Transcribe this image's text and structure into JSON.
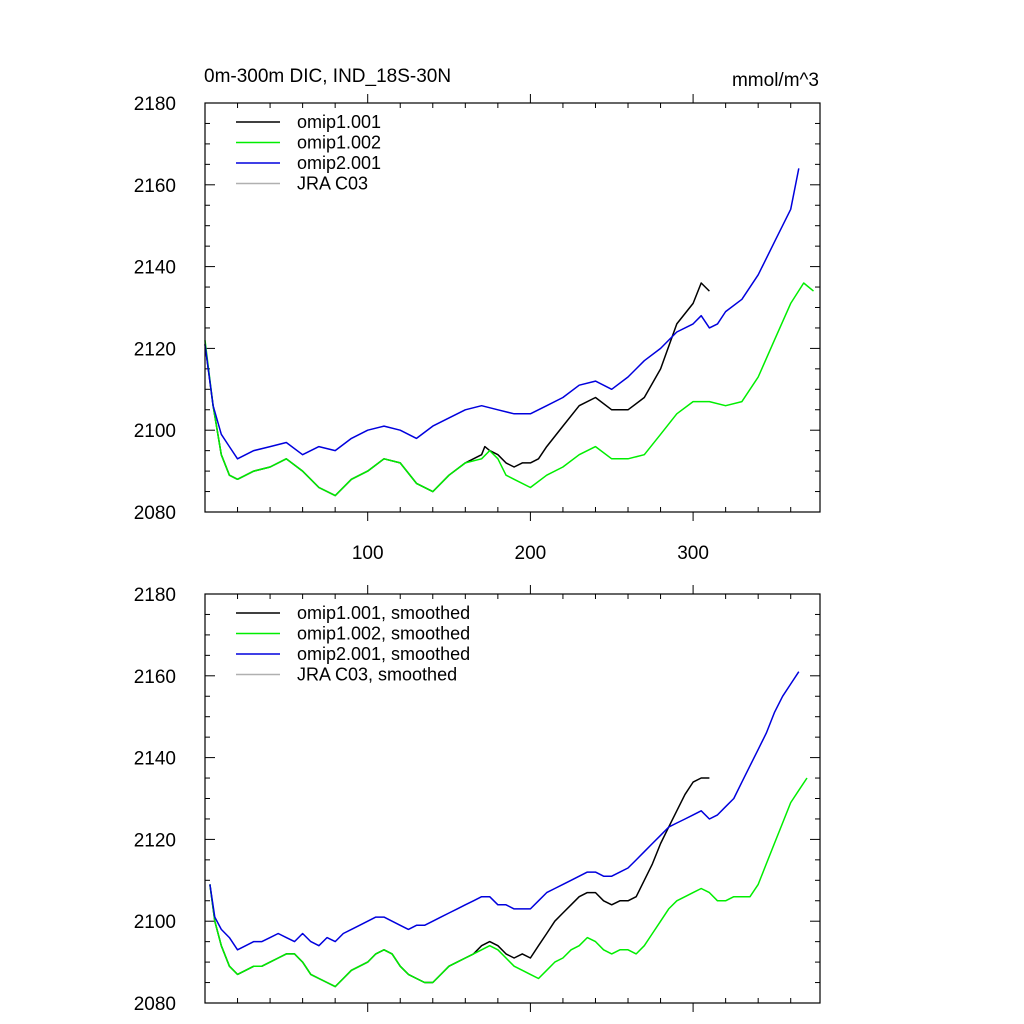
{
  "chart_data": [
    {
      "type": "line",
      "title": "0m-300m DIC, IND_18S-30N",
      "units": "mmol/m^3",
      "xlim": [
        0,
        378
      ],
      "ylim": [
        2080,
        2180
      ],
      "y_ticks": [
        2080,
        2100,
        2120,
        2140,
        2160,
        2180
      ],
      "x_ticks": [
        100,
        200,
        300
      ],
      "series": [
        {
          "name": "omip1.001",
          "color": "#000000",
          "x": [
            0,
            5,
            10,
            15,
            20,
            30,
            40,
            50,
            60,
            70,
            80,
            90,
            100,
            110,
            120,
            130,
            140,
            150,
            160,
            170,
            172,
            175,
            180,
            185,
            190,
            195,
            200,
            205,
            210,
            220,
            230,
            240,
            250,
            260,
            270,
            280,
            290,
            300,
            305,
            310
          ],
          "y": [
            2121,
            2106,
            2094,
            2089,
            2088,
            2090,
            2091,
            2093,
            2090,
            2086,
            2084,
            2088,
            2090,
            2093,
            2092,
            2087,
            2085,
            2089,
            2092,
            2094,
            2096,
            2095,
            2094,
            2092,
            2091,
            2092,
            2092,
            2093,
            2096,
            2101,
            2106,
            2108,
            2105,
            2105,
            2108,
            2115,
            2126,
            2131,
            2136,
            2134
          ]
        },
        {
          "name": "omip1.002",
          "color": "#00ee00",
          "x": [
            0,
            5,
            10,
            15,
            20,
            30,
            40,
            50,
            60,
            70,
            80,
            90,
            100,
            110,
            120,
            130,
            140,
            150,
            160,
            170,
            175,
            180,
            185,
            190,
            200,
            210,
            220,
            230,
            240,
            250,
            260,
            270,
            280,
            290,
            300,
            310,
            320,
            330,
            340,
            350,
            360,
            368,
            374
          ],
          "y": [
            2122,
            2106,
            2094,
            2089,
            2088,
            2090,
            2091,
            2093,
            2090,
            2086,
            2084,
            2088,
            2090,
            2093,
            2092,
            2087,
            2085,
            2089,
            2092,
            2093,
            2095,
            2093,
            2089,
            2088,
            2086,
            2089,
            2091,
            2094,
            2096,
            2093,
            2093,
            2094,
            2099,
            2104,
            2107,
            2107,
            2106,
            2107,
            2113,
            2122,
            2131,
            2136,
            2134
          ]
        },
        {
          "name": "omip2.001",
          "color": "#0000dd",
          "x": [
            0,
            5,
            10,
            15,
            20,
            30,
            40,
            50,
            60,
            70,
            80,
            90,
            100,
            110,
            120,
            130,
            140,
            150,
            160,
            170,
            180,
            190,
            200,
            210,
            220,
            230,
            240,
            250,
            260,
            270,
            280,
            290,
            300,
            305,
            310,
            315,
            320,
            330,
            340,
            350,
            360,
            365
          ],
          "y": [
            2121,
            2106,
            2099,
            2096,
            2093,
            2095,
            2096,
            2097,
            2094,
            2096,
            2095,
            2098,
            2100,
            2101,
            2100,
            2098,
            2101,
            2103,
            2105,
            2106,
            2105,
            2104,
            2104,
            2106,
            2108,
            2111,
            2112,
            2110,
            2113,
            2117,
            2120,
            2124,
            2126,
            2128,
            2125,
            2126,
            2129,
            2132,
            2138,
            2146,
            2154,
            2164
          ]
        },
        {
          "name": "JRA C03",
          "color": "#b0b0b0",
          "x": [],
          "y": []
        }
      ]
    },
    {
      "type": "line",
      "title": "",
      "xlim": [
        0,
        378
      ],
      "ylim": [
        2080,
        2180
      ],
      "y_ticks": [
        2080,
        2100,
        2120,
        2140,
        2160,
        2180
      ],
      "x_ticks": [],
      "series": [
        {
          "name": "omip1.001, smoothed",
          "color": "#000000",
          "x": [
            3,
            6,
            10,
            15,
            20,
            25,
            30,
            35,
            40,
            45,
            50,
            55,
            60,
            65,
            70,
            75,
            80,
            85,
            90,
            95,
            100,
            105,
            110,
            115,
            120,
            125,
            130,
            135,
            140,
            145,
            150,
            155,
            160,
            165,
            170,
            175,
            180,
            185,
            190,
            195,
            200,
            205,
            210,
            215,
            220,
            225,
            230,
            235,
            240,
            245,
            250,
            255,
            260,
            265,
            270,
            275,
            280,
            285,
            290,
            295,
            300,
            305,
            310
          ],
          "y": [
            2109,
            2100,
            2094,
            2089,
            2087,
            2088,
            2089,
            2089,
            2090,
            2091,
            2092,
            2092,
            2090,
            2087,
            2086,
            2085,
            2084,
            2086,
            2088,
            2089,
            2090,
            2092,
            2093,
            2092,
            2089,
            2087,
            2086,
            2085,
            2085,
            2087,
            2089,
            2090,
            2091,
            2092,
            2094,
            2095,
            2094,
            2092,
            2091,
            2092,
            2091,
            2094,
            2097,
            2100,
            2102,
            2104,
            2106,
            2107,
            2107,
            2105,
            2104,
            2105,
            2105,
            2106,
            2110,
            2114,
            2119,
            2123,
            2127,
            2131,
            2134,
            2135,
            2135
          ]
        },
        {
          "name": "omip1.002, smoothed",
          "color": "#00ee00",
          "x": [
            3,
            6,
            10,
            15,
            20,
            25,
            30,
            35,
            40,
            45,
            50,
            55,
            60,
            65,
            70,
            75,
            80,
            85,
            90,
            95,
            100,
            105,
            110,
            115,
            120,
            125,
            130,
            135,
            140,
            145,
            150,
            155,
            160,
            165,
            170,
            175,
            180,
            185,
            190,
            195,
            200,
            205,
            210,
            215,
            220,
            225,
            230,
            235,
            240,
            245,
            250,
            255,
            260,
            265,
            270,
            275,
            280,
            285,
            290,
            295,
            300,
            305,
            310,
            315,
            320,
            325,
            330,
            335,
            340,
            345,
            350,
            355,
            360,
            365,
            370
          ],
          "y": [
            2109,
            2100,
            2094,
            2089,
            2087,
            2088,
            2089,
            2089,
            2090,
            2091,
            2092,
            2092,
            2090,
            2087,
            2086,
            2085,
            2084,
            2086,
            2088,
            2089,
            2090,
            2092,
            2093,
            2092,
            2089,
            2087,
            2086,
            2085,
            2085,
            2087,
            2089,
            2090,
            2091,
            2092,
            2093,
            2094,
            2093,
            2091,
            2089,
            2088,
            2087,
            2086,
            2088,
            2090,
            2091,
            2093,
            2094,
            2096,
            2095,
            2093,
            2092,
            2093,
            2093,
            2092,
            2094,
            2097,
            2100,
            2103,
            2105,
            2106,
            2107,
            2108,
            2107,
            2105,
            2105,
            2106,
            2106,
            2106,
            2109,
            2114,
            2119,
            2124,
            2129,
            2132,
            2135
          ]
        },
        {
          "name": "omip2.001, smoothed",
          "color": "#0000dd",
          "x": [
            3,
            6,
            10,
            15,
            20,
            25,
            30,
            35,
            40,
            45,
            50,
            55,
            60,
            65,
            70,
            75,
            80,
            85,
            90,
            95,
            100,
            105,
            110,
            115,
            120,
            125,
            130,
            135,
            140,
            145,
            150,
            155,
            160,
            165,
            170,
            175,
            180,
            185,
            190,
            195,
            200,
            205,
            210,
            215,
            220,
            225,
            230,
            235,
            240,
            245,
            250,
            255,
            260,
            265,
            270,
            275,
            280,
            285,
            290,
            295,
            300,
            305,
            310,
            315,
            320,
            325,
            330,
            335,
            340,
            345,
            350,
            355,
            360,
            365
          ],
          "y": [
            2109,
            2101,
            2098,
            2096,
            2093,
            2094,
            2095,
            2095,
            2096,
            2097,
            2096,
            2095,
            2097,
            2095,
            2094,
            2096,
            2095,
            2097,
            2098,
            2099,
            2100,
            2101,
            2101,
            2100,
            2099,
            2098,
            2099,
            2099,
            2100,
            2101,
            2102,
            2103,
            2104,
            2105,
            2106,
            2106,
            2104,
            2104,
            2103,
            2103,
            2103,
            2105,
            2107,
            2108,
            2109,
            2110,
            2111,
            2112,
            2112,
            2111,
            2111,
            2112,
            2113,
            2115,
            2117,
            2119,
            2121,
            2123,
            2124,
            2125,
            2126,
            2127,
            2125,
            2126,
            2128,
            2130,
            2134,
            2138,
            2142,
            2146,
            2151,
            2155,
            2158,
            2161
          ]
        },
        {
          "name": "JRA C03, smoothed",
          "color": "#b0b0b0",
          "x": [],
          "y": []
        }
      ]
    }
  ]
}
